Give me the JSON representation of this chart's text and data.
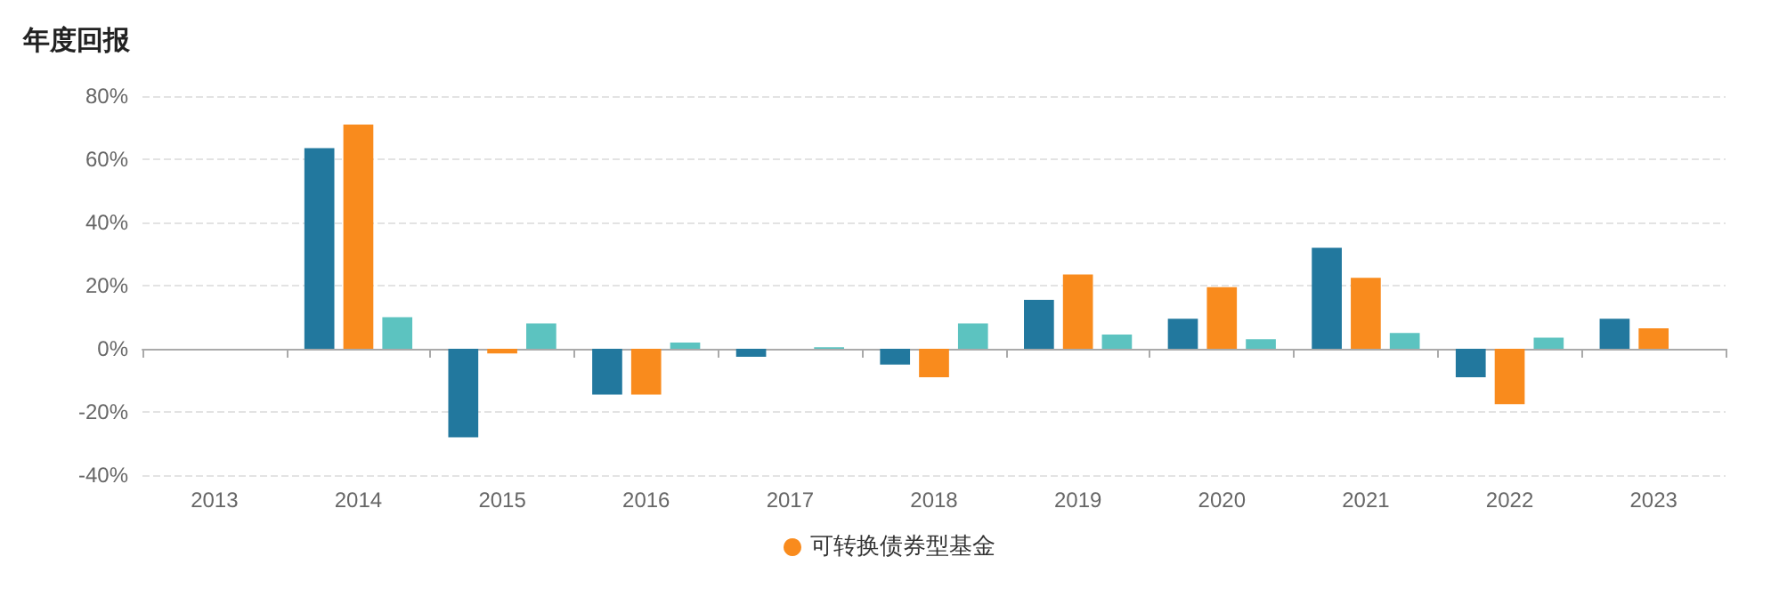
{
  "chart_data": {
    "type": "bar",
    "title": "年度回报",
    "categories": [
      "2013",
      "2014",
      "2015",
      "2016",
      "2017",
      "2018",
      "2019",
      "2020",
      "2021",
      "2022",
      "2023"
    ],
    "series": [
      {
        "color": "#22789e",
        "values": [
          null,
          63.5,
          -28,
          -14.5,
          -2.5,
          -5,
          15.5,
          9.5,
          32,
          -9,
          9.5
        ]
      },
      {
        "name": "可转换债券型基金",
        "color": "#f98b1d",
        "values": [
          null,
          71,
          -1.5,
          -14.5,
          null,
          -9,
          23.5,
          19.5,
          22.5,
          -17.5,
          6.5
        ]
      },
      {
        "color": "#5cc3c0",
        "values": [
          null,
          10,
          8,
          2,
          0.5,
          8,
          4.5,
          3,
          5,
          3.5,
          null
        ]
      }
    ],
    "ylim": [
      -40,
      80
    ],
    "yticks": [
      {
        "value": -40,
        "label": "-40%"
      },
      {
        "value": -20,
        "label": "-20%"
      },
      {
        "value": 0,
        "label": "0%"
      },
      {
        "value": 20,
        "label": "20%"
      },
      {
        "value": 40,
        "label": "40%"
      },
      {
        "value": 60,
        "label": "60%"
      },
      {
        "value": 80,
        "label": "80%"
      }
    ],
    "grid": "y",
    "legend": "bottom"
  }
}
